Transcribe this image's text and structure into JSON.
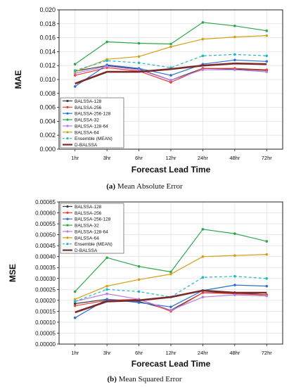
{
  "captions": [
    {
      "label": "(a)",
      "text": "Mean Absolute Error"
    },
    {
      "label": "(b)",
      "text": "Mean Squared Error"
    }
  ],
  "chart_data": [
    {
      "type": "line",
      "xlabel": "Forecast Lead Time",
      "ylabel": "MAE",
      "categories": [
        "1hr",
        "3hr",
        "6hr",
        "12hr",
        "24hr",
        "48hr",
        "72hr"
      ],
      "ylim": [
        0.0,
        0.02
      ],
      "yticks": [
        "0.000",
        "0.002",
        "0.004",
        "0.006",
        "0.008",
        "0.010",
        "0.012",
        "0.014",
        "0.016",
        "0.018",
        "0.020"
      ],
      "grid": true,
      "legend_position": "bottom-left",
      "series": [
        {
          "name": "BALSSA-128",
          "color": "#3a3a3a",
          "marker": "circle",
          "dash": false,
          "width": 1.2,
          "values": [
            0.0112,
            0.012,
            0.0115,
            0.0099,
            0.0116,
            0.0115,
            0.0113
          ]
        },
        {
          "name": "BALSSA-256",
          "color": "#e8413c",
          "marker": "circle",
          "dash": false,
          "width": 1.2,
          "values": [
            0.0106,
            0.0117,
            0.0112,
            0.0096,
            0.0116,
            0.0116,
            0.0114
          ]
        },
        {
          "name": "BALSSA-256-128",
          "color": "#2d6fd6",
          "marker": "circle",
          "dash": false,
          "width": 1.2,
          "values": [
            0.009,
            0.0121,
            0.0116,
            0.0106,
            0.0122,
            0.0128,
            0.0126
          ]
        },
        {
          "name": "BALSSA-32",
          "color": "#2aa84a",
          "marker": "circle",
          "dash": false,
          "width": 1.2,
          "values": [
            0.0122,
            0.0154,
            0.0152,
            0.0151,
            0.0182,
            0.0177,
            0.017
          ]
        },
        {
          "name": "BALSSA-128-64",
          "color": "#b57ee0",
          "marker": "circle",
          "dash": false,
          "width": 1.2,
          "values": [
            0.0109,
            0.0119,
            0.0114,
            0.0099,
            0.0114,
            0.0114,
            0.0111
          ]
        },
        {
          "name": "BALSSA-64",
          "color": "#d4a017",
          "marker": "circle",
          "dash": false,
          "width": 1.2,
          "values": [
            0.0111,
            0.0129,
            0.0133,
            0.0147,
            0.0158,
            0.0161,
            0.0163
          ]
        },
        {
          "name": "Ensemble (MEAN)",
          "color": "#20b8c8",
          "marker": "circle",
          "dash": true,
          "width": 1.2,
          "values": [
            0.0113,
            0.0127,
            0.0124,
            0.0117,
            0.0134,
            0.0136,
            0.0134
          ]
        },
        {
          "name": "D-BALSSA",
          "color": "#7b2a2a",
          "marker": "none",
          "dash": false,
          "width": 2.6,
          "values": [
            0.0094,
            0.0111,
            0.0111,
            0.0115,
            0.012,
            0.0123,
            0.0122
          ]
        }
      ]
    },
    {
      "type": "line",
      "xlabel": "Forecast Lead Time",
      "ylabel": "MSE",
      "categories": [
        "1hr",
        "3hr",
        "6hr",
        "12hr",
        "24hr",
        "48hr",
        "72hr"
      ],
      "ylim": [
        0.0,
        0.00065
      ],
      "yticks": [
        "0.00000",
        "0.00005",
        "0.00010",
        "0.00015",
        "0.00020",
        "0.00025",
        "0.00030",
        "0.00035",
        "0.00040",
        "0.00045",
        "0.00050",
        "0.00055",
        "0.00060",
        "0.00065"
      ],
      "grid": true,
      "legend_position": "top-left",
      "series": [
        {
          "name": "BALSSA-128",
          "color": "#3a3a3a",
          "marker": "circle",
          "dash": false,
          "width": 1.2,
          "values": [
            0.000185,
            0.000205,
            0.000195,
            0.000155,
            0.000235,
            0.000235,
            0.000225
          ]
        },
        {
          "name": "BALSSA-256",
          "color": "#e8413c",
          "marker": "circle",
          "dash": false,
          "width": 1.2,
          "values": [
            0.000175,
            0.0002,
            0.000205,
            0.00015,
            0.000235,
            0.00023,
            0.000225
          ]
        },
        {
          "name": "BALSSA-256-128",
          "color": "#2d6fd6",
          "marker": "circle",
          "dash": false,
          "width": 1.2,
          "values": [
            0.00012,
            0.000205,
            0.00019,
            0.00017,
            0.000245,
            0.00027,
            0.000265
          ]
        },
        {
          "name": "BALSSA-32",
          "color": "#2aa84a",
          "marker": "circle",
          "dash": false,
          "width": 1.2,
          "values": [
            0.00024,
            0.000395,
            0.000355,
            0.00033,
            0.000525,
            0.000505,
            0.00047
          ]
        },
        {
          "name": "BALSSA-128-64",
          "color": "#b57ee0",
          "marker": "circle",
          "dash": false,
          "width": 1.2,
          "values": [
            0.000195,
            0.00023,
            0.000205,
            0.000155,
            0.000215,
            0.000225,
            0.00022
          ]
        },
        {
          "name": "BALSSA-64",
          "color": "#d4a017",
          "marker": "circle",
          "dash": false,
          "width": 1.2,
          "values": [
            0.000205,
            0.000265,
            0.000295,
            0.00032,
            0.0004,
            0.000405,
            0.00041
          ]
        },
        {
          "name": "Ensemble (MEAN)",
          "color": "#20b8c8",
          "marker": "circle",
          "dash": true,
          "width": 1.2,
          "values": [
            0.000195,
            0.00025,
            0.00024,
            0.000215,
            0.000305,
            0.00031,
            0.0003
          ]
        },
        {
          "name": "D-BALSSA",
          "color": "#7b2a2a",
          "marker": "none",
          "dash": false,
          "width": 2.6,
          "values": [
            0.000145,
            0.000195,
            0.0002,
            0.000215,
            0.000245,
            0.000235,
            0.000235
          ]
        }
      ]
    }
  ]
}
